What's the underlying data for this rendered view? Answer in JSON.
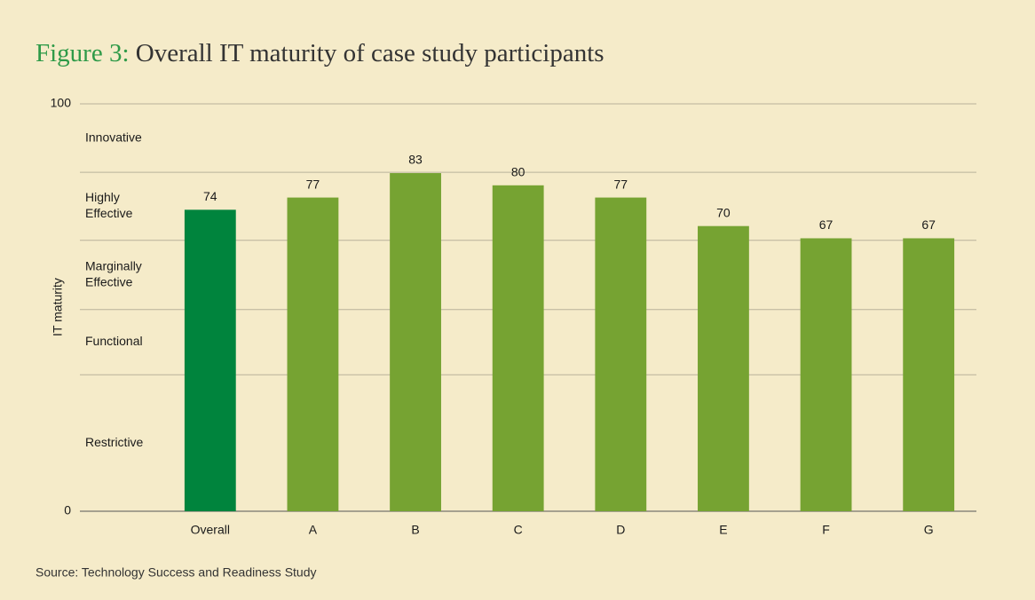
{
  "chart_data": {
    "type": "bar",
    "title_prefix": "Figure 3:",
    "title": "Overall IT maturity of case study participants",
    "y_label": "IT maturity",
    "source": "Source: Technology Success and Readiness Study",
    "categories": [
      "Overall",
      "A",
      "B",
      "C",
      "D",
      "E",
      "F",
      "G"
    ],
    "values": [
      74,
      77,
      83,
      80,
      77,
      70,
      67,
      67
    ],
    "colors": [
      "#00843d",
      "#76a332",
      "#76a332",
      "#76a332",
      "#76a332",
      "#76a332",
      "#76a332",
      "#76a332"
    ],
    "title_prefix_color": "#2e9a48",
    "ylim": [
      0,
      100
    ],
    "yticks": [
      0,
      100
    ],
    "bands": [
      {
        "label": [
          "Restrictive"
        ],
        "from": 0,
        "to": 33.5
      },
      {
        "label": [
          "Functional"
        ],
        "from": 33.5,
        "to": 49.5
      },
      {
        "label": [
          "Marginally",
          "Effective"
        ],
        "from": 49.5,
        "to": 66.5
      },
      {
        "label": [
          "Highly",
          "Effective"
        ],
        "from": 66.5,
        "to": 83.2
      },
      {
        "label": [
          "Innovative"
        ],
        "from": 83.2,
        "to": 100
      }
    ],
    "grid": true
  }
}
